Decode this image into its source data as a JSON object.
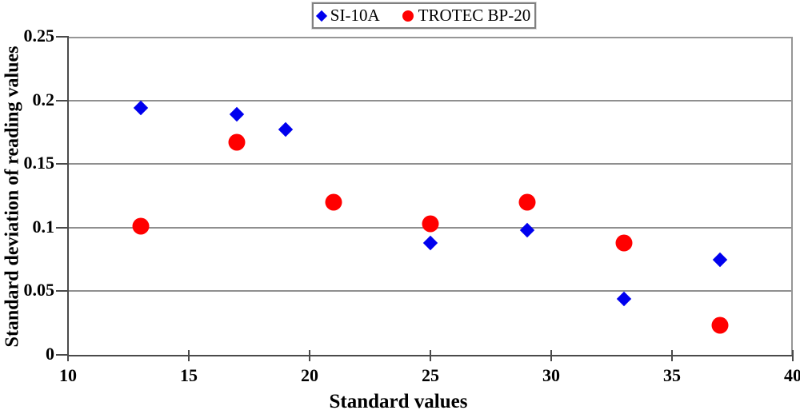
{
  "chart_data": {
    "type": "scatter",
    "title": "",
    "xlabel": "Standard values",
    "ylabel": "Standard deviation of reading values",
    "xlim": [
      10,
      40
    ],
    "ylim": [
      0,
      0.25
    ],
    "x_ticks": [
      10,
      15,
      20,
      25,
      30,
      35,
      40
    ],
    "x_tick_labels": [
      "10",
      "15",
      "20",
      "25",
      "30",
      "35",
      "40"
    ],
    "y_ticks": [
      0,
      0.05,
      0.1,
      0.15,
      0.2,
      0.25
    ],
    "y_tick_labels": [
      "0",
      "0.05",
      "0.1",
      "0.15",
      "0.2",
      "0.25"
    ],
    "grid": "horizontal",
    "legend_position": "top-center",
    "series": [
      {
        "name": "SI-10A",
        "marker": "diamond",
        "color": "#0000ee",
        "points": [
          [
            13,
            0.194
          ],
          [
            17,
            0.189
          ],
          [
            19,
            0.177
          ],
          [
            25,
            0.088
          ],
          [
            29,
            0.098
          ],
          [
            33,
            0.044
          ],
          [
            37,
            0.075
          ]
        ]
      },
      {
        "name": "TROTEC BP-20",
        "marker": "circle",
        "color": "#ff0000",
        "points": [
          [
            13,
            0.101
          ],
          [
            17,
            0.167
          ],
          [
            21,
            0.12
          ],
          [
            25,
            0.103
          ],
          [
            29,
            0.12
          ],
          [
            33,
            0.088
          ],
          [
            37,
            0.023
          ]
        ]
      }
    ],
    "colors": {
      "gridline": "#8f8f8f",
      "axis": "#4a4a4a",
      "frame": "#969696",
      "text": "#000000",
      "background": "#ffffff"
    }
  }
}
